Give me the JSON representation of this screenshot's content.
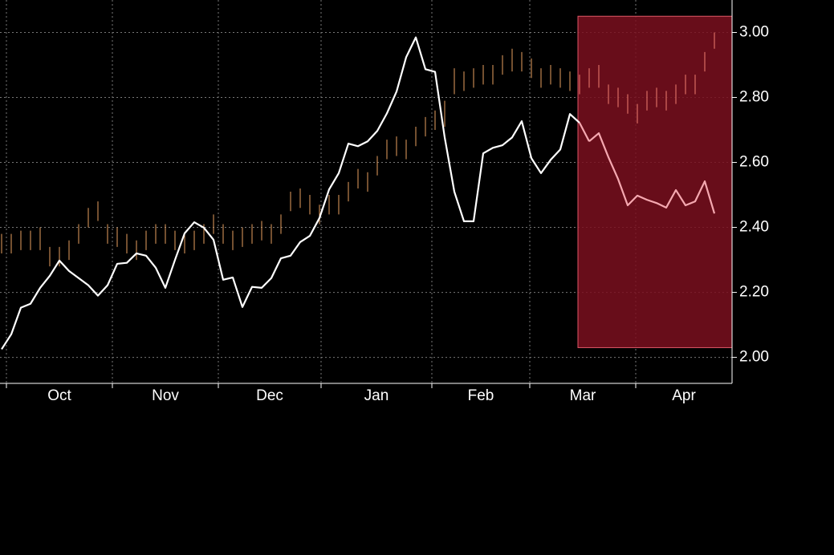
{
  "chart_data": {
    "type": "line",
    "x_labels": [
      "Oct",
      "Nov",
      "Dec",
      "Jan",
      "Feb",
      "Mar",
      "Apr"
    ],
    "ylim": [
      1.92,
      3.1
    ],
    "yticks": [
      {
        "value": 2,
        "label": "2.00"
      },
      {
        "value": 2.2,
        "label": "2.20"
      },
      {
        "value": 2.4,
        "label": "2.40"
      },
      {
        "value": 2.6,
        "label": "2.60"
      },
      {
        "value": 2.8,
        "label": "2.80"
      },
      {
        "value": 3,
        "label": "3.00"
      }
    ],
    "grid": true,
    "bars": {
      "color": "#e8a060",
      "high": [
        2.38,
        2.38,
        2.39,
        2.39,
        2.4,
        2.34,
        2.34,
        2.36,
        2.41,
        2.46,
        2.48,
        2.41,
        2.4,
        2.38,
        2.36,
        2.39,
        2.41,
        2.41,
        2.39,
        2.38,
        2.39,
        2.41,
        2.44,
        2.41,
        2.39,
        2.4,
        2.41,
        2.42,
        2.41,
        2.44,
        2.51,
        2.52,
        2.5,
        2.47,
        2.5,
        2.5,
        2.54,
        2.58,
        2.57,
        2.62,
        2.67,
        2.68,
        2.67,
        2.71,
        2.74,
        2.76,
        2.79,
        2.89,
        2.88,
        2.89,
        2.9,
        2.9,
        2.93,
        2.95,
        2.94,
        2.92,
        2.89,
        2.9,
        2.89,
        2.88,
        2.87,
        2.89,
        2.9,
        2.84,
        2.83,
        2.81,
        2.78,
        2.82,
        2.83,
        2.82,
        2.84,
        2.87,
        2.87,
        2.94,
        3.0
      ],
      "low": [
        2.32,
        2.32,
        2.33,
        2.33,
        2.33,
        2.28,
        2.28,
        2.3,
        2.35,
        2.4,
        2.42,
        2.35,
        2.34,
        2.32,
        2.3,
        2.33,
        2.35,
        2.35,
        2.33,
        2.32,
        2.33,
        2.35,
        2.38,
        2.35,
        2.33,
        2.34,
        2.35,
        2.36,
        2.35,
        2.38,
        2.45,
        2.46,
        2.44,
        2.41,
        2.44,
        2.44,
        2.48,
        2.52,
        2.51,
        2.56,
        2.61,
        2.62,
        2.61,
        2.65,
        2.68,
        2.7,
        2.71,
        2.81,
        2.82,
        2.83,
        2.84,
        2.84,
        2.87,
        2.88,
        2.88,
        2.86,
        2.83,
        2.84,
        2.83,
        2.82,
        2.81,
        2.83,
        2.83,
        2.78,
        2.77,
        2.75,
        2.72,
        2.76,
        2.77,
        2.76,
        2.78,
        2.81,
        2.81,
        2.88,
        2.95
      ]
    },
    "line": {
      "color": "#ffffff",
      "values": [
        2.025,
        2.071,
        2.153,
        2.165,
        2.214,
        2.251,
        2.298,
        2.266,
        2.244,
        2.222,
        2.19,
        2.222,
        2.288,
        2.291,
        2.32,
        2.313,
        2.276,
        2.214,
        2.3,
        2.382,
        2.416,
        2.399,
        2.362,
        2.239,
        2.246,
        2.155,
        2.217,
        2.214,
        2.244,
        2.305,
        2.313,
        2.355,
        2.374,
        2.429,
        2.517,
        2.567,
        2.658,
        2.65,
        2.665,
        2.697,
        2.751,
        2.818,
        2.924,
        2.985,
        2.887,
        2.879,
        2.677,
        2.51,
        2.419,
        2.419,
        2.628,
        2.645,
        2.653,
        2.677,
        2.727,
        2.613,
        2.567,
        2.608,
        2.64,
        2.749,
        2.722,
        2.665,
        2.69,
        2.616,
        2.549,
        2.468,
        2.498,
        2.485,
        2.475,
        2.461,
        2.515,
        2.468,
        2.48,
        2.542,
        2.443
      ]
    },
    "highlight": {
      "start_index": 60,
      "ylim": [
        2.03,
        3.05
      ],
      "fill": "#7a0f1f",
      "stroke": "#e05868",
      "line_color": "#f5a8b0",
      "bar_color": "#f08070"
    }
  }
}
